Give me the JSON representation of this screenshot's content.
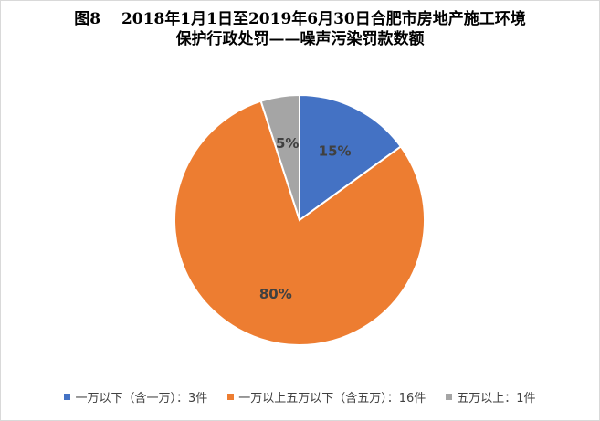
{
  "chart_data": {
    "type": "pie",
    "title_line1": "图8　 2018年1月1日至2019年6月30日合肥市房地产施工环境",
    "title_line2": "保护行政处罚——噪声污染罚款数额",
    "slices": [
      {
        "name": "一万以下（含一万）：3件",
        "value": 15,
        "label": "15%",
        "color": "#4472C4"
      },
      {
        "name": "一万以上五万以下（含五万）：16件",
        "value": 80,
        "label": "80%",
        "color": "#ED7D31"
      },
      {
        "name": "五万以上：1件",
        "value": 5,
        "label": "5%",
        "color": "#A5A5A5"
      }
    ],
    "legend_position": "bottom"
  }
}
